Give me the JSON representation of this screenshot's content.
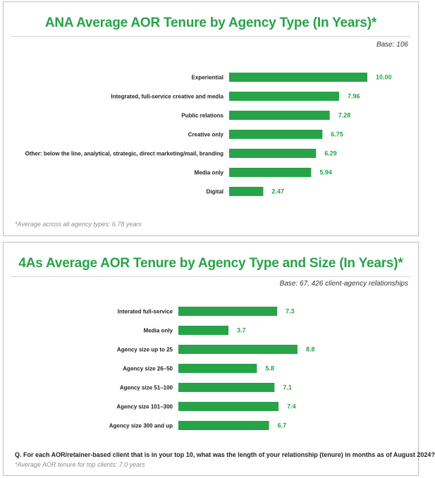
{
  "charts": [
    {
      "title": "ANA Average AOR Tenure by Agency Type (In Years)*",
      "base": "Base: 106",
      "footnote": "*Average across all agency types: 6.78 years"
    },
    {
      "title": "4As Average AOR Tenure by Agency Type and Size (In Years)*",
      "base": "Base: 67, 426 client-agency relationships",
      "question": "Q. For each AOR/retainer-based client that is in your top 10, what was the length of your relationship (tenure) in months as of August 2024?",
      "footnote": "*Average AOR tenure for top clients: 7.0 years"
    }
  ],
  "colors": {
    "bar": "#27a348",
    "title": "#27a348",
    "value": "#27a348"
  },
  "chart_data": [
    {
      "type": "bar",
      "orientation": "horizontal",
      "title": "ANA Average AOR Tenure by Agency Type (In Years)*",
      "categories": [
        "Experiential",
        "Integrated, full-service creative and media",
        "Public relations",
        "Creative only",
        "Other: below the line, analytical, strategic, direct marketing/mail, branding",
        "Media only",
        "Digital"
      ],
      "values": [
        10.0,
        7.96,
        7.28,
        6.75,
        6.29,
        5.94,
        2.47
      ],
      "value_labels": [
        "10.00",
        "7.96",
        "7.28",
        "6.75",
        "6.29",
        "5.94",
        "2.47"
      ],
      "xlim": [
        0,
        10
      ],
      "grid": false
    },
    {
      "type": "bar",
      "orientation": "horizontal",
      "title": "4As Average AOR Tenure by Agency Type and Size (In Years)*",
      "categories": [
        "Interated full-service",
        "Media only",
        "Agency size up to 25",
        "Agency size 26–50",
        "Agency size 51–100",
        "Agency size 101–300",
        "Agency size 300 and up"
      ],
      "values": [
        7.3,
        3.7,
        8.8,
        5.8,
        7.1,
        7.4,
        6.7
      ],
      "value_labels": [
        "7.3",
        "3.7",
        "8.8",
        "5.8",
        "7.1",
        "7.4",
        "6.7"
      ],
      "xlim": [
        0,
        10
      ],
      "grid": false
    }
  ]
}
